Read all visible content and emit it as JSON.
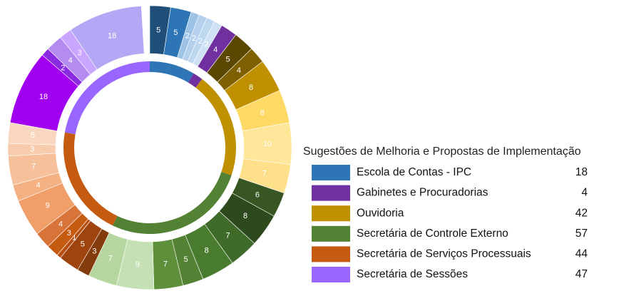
{
  "chart_data": {
    "type": "sunburst",
    "legend_title": "Sugestões de Melhoria e Propostas de Implementação",
    "groups": [
      {
        "name": "Escola de Contas - IPC",
        "value": 18,
        "color": "#2e75b6",
        "segments": [
          5,
          5,
          2,
          2,
          2,
          2
        ],
        "segment_colors": [
          "#1f4e79",
          "#2e75b6",
          "#9dc3e6",
          "#b4d0ec",
          "#bdd7ee",
          "#cfe2f3"
        ]
      },
      {
        "name": "Gabinetes e Procuradorias",
        "value": 4,
        "color": "#7030a0",
        "segments": [
          4
        ],
        "segment_colors": [
          "#7030a0"
        ]
      },
      {
        "name": "Ouvidoria",
        "value": 42,
        "color": "#bf9000",
        "segments": [
          5,
          4,
          8,
          8,
          10,
          7
        ],
        "segment_colors": [
          "#5c4700",
          "#7f6000",
          "#bf9000",
          "#ffd966",
          "#ffe699",
          "#ffe08a"
        ]
      },
      {
        "name": "Secretária de Controle Externo",
        "value": 57,
        "color": "#548235",
        "segments": [
          6,
          8,
          7,
          8,
          5,
          7,
          9,
          7
        ],
        "segment_colors": [
          "#375623",
          "#2d4a1c",
          "#3f6b2a",
          "#4a7c2f",
          "#548235",
          "#5e8f3a",
          "#c5e0b4",
          "#b5d69e"
        ]
      },
      {
        "name": "Secretária de Serviços Processuais",
        "value": 44,
        "color": "#c55a11",
        "segments": [
          3,
          5,
          1,
          3,
          4,
          9,
          4,
          7,
          3,
          5
        ],
        "segment_colors": [
          "#843c0c",
          "#a0440f",
          "#b64f10",
          "#c55a11",
          "#d8743a",
          "#f09e6a",
          "#f4b183",
          "#f6c09a",
          "#f8cbad",
          "#fad7c0"
        ]
      },
      {
        "name": "Secretária de Sessões",
        "value": 47,
        "color": "#9966ff",
        "segments": [
          18,
          2,
          4,
          3,
          18
        ],
        "segment_colors": [
          "#a100f0",
          "#8a2be2",
          "#b48cf0",
          "#c9a6ff",
          "#b4a7f5"
        ]
      }
    ]
  }
}
